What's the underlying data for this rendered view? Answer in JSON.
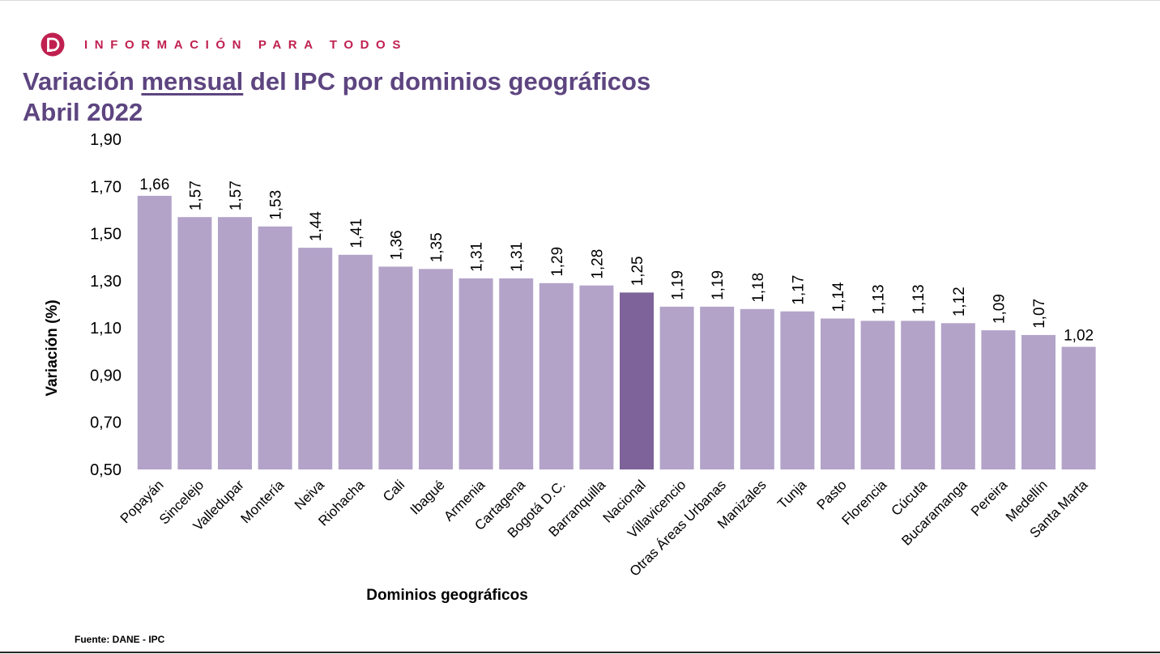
{
  "header": {
    "brand": "INFORMACIÓN PARA TODOS",
    "logo_icon": "dane-logo-icon",
    "brand_color": "#c0204f"
  },
  "title": {
    "line1_pre": "Variación",
    "line1_underlined": "mensual",
    "line1_post": "del IPC por dominios geográficos",
    "line2": "Abril 2022",
    "color": "#5d4580"
  },
  "chart_data": {
    "type": "bar",
    "categories": [
      "Popayán",
      "Sincelejo",
      "Valledupar",
      "Montería",
      "Neiva",
      "Riohacha",
      "Cali",
      "Ibagué",
      "Armenia",
      "Cartagena",
      "Bogotá D.C.",
      "Barranquilla",
      "Nacional",
      "Villavicencio",
      "Otras Áreas Urbanas",
      "Manizales",
      "Tunja",
      "Pasto",
      "Florencia",
      "Cúcuta",
      "Bucaramanga",
      "Pereira",
      "Medellín",
      "Santa Marta"
    ],
    "values": [
      1.66,
      1.57,
      1.57,
      1.53,
      1.44,
      1.41,
      1.36,
      1.35,
      1.31,
      1.31,
      1.29,
      1.28,
      1.25,
      1.19,
      1.19,
      1.18,
      1.17,
      1.14,
      1.13,
      1.13,
      1.12,
      1.09,
      1.07,
      1.02
    ],
    "data_labels": [
      "1,66",
      "1,57",
      "1,57",
      "1,53",
      "1,44",
      "1,41",
      "1,36",
      "1,35",
      "1,31",
      "1,31",
      "1,29",
      "1,28",
      "1,25",
      "1,19",
      "1,19",
      "1,18",
      "1,17",
      "1,14",
      "1,13",
      "1,13",
      "1,12",
      "1,09",
      "1,07",
      "1,02"
    ],
    "yticks": [
      0.5,
      0.7,
      0.9,
      1.1,
      1.3,
      1.5,
      1.7,
      1.9
    ],
    "ytick_labels": [
      "0,50",
      "0,70",
      "0,90",
      "1,10",
      "1,30",
      "1,50",
      "1,70",
      "1,90"
    ],
    "ylim": [
      0.5,
      1.9
    ],
    "xlabel": "Dominios geográficos",
    "ylabel": "Variación (%)",
    "grid": false,
    "legend": "none",
    "bar_color": "#b3a3c9",
    "highlight_category": "Nacional",
    "highlight_color": "#7d6399"
  },
  "footer": {
    "source": "Fuente: DANE - IPC"
  }
}
